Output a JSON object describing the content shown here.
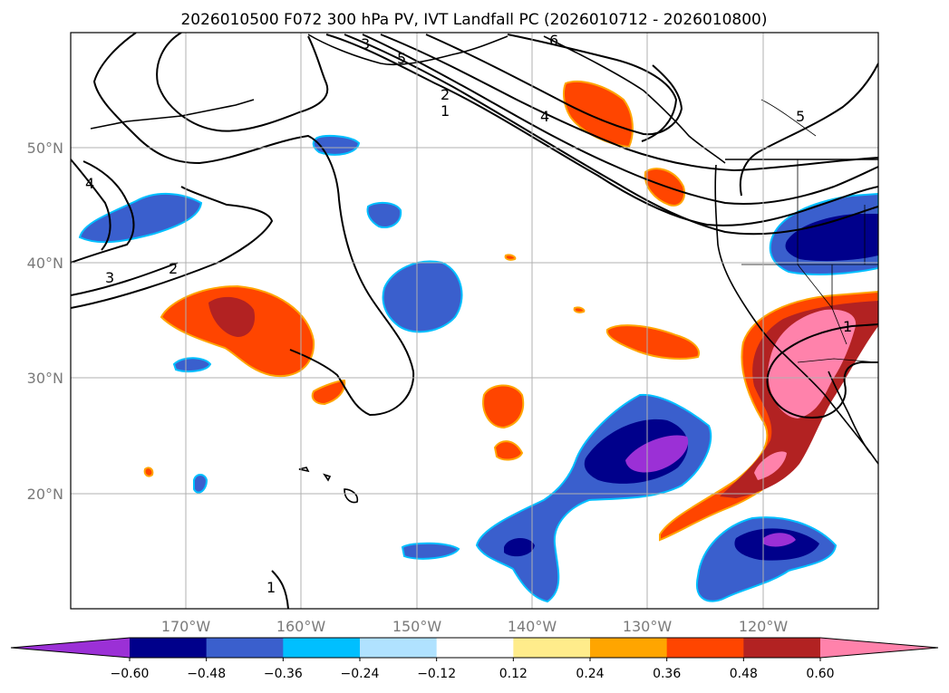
{
  "title": "2026010500 F072 300 hPa PV, IVT Landfall PC (2026010712 - 2026010800)",
  "map": {
    "lon_range": [
      -180,
      -110
    ],
    "lat_range": [
      10,
      60
    ],
    "grid": true,
    "lon_labels": [
      "170°W",
      "160°W",
      "150°W",
      "140°W",
      "130°W",
      "120°W"
    ],
    "lat_labels": [
      "50°N",
      "40°N",
      "30°N",
      "20°N"
    ],
    "contour_labels": [
      "3",
      "5",
      "6",
      "2",
      "1",
      "4",
      "5",
      "4",
      "3",
      "2",
      "1",
      "1"
    ]
  },
  "colorbar": {
    "tick_labels": [
      "−0.60",
      "−0.48",
      "−0.36",
      "−0.24",
      "−0.12",
      "0.12",
      "0.24",
      "0.36",
      "0.48",
      "0.60"
    ],
    "colors": [
      "#9b30d6",
      "#00008b",
      "#3a5fcd",
      "#00bfff",
      "#b0e2ff",
      "#ffffff",
      "#ffec8b",
      "#ffa500",
      "#ff4500",
      "#b22222",
      "#ff82ab"
    ],
    "extend": "both"
  }
}
